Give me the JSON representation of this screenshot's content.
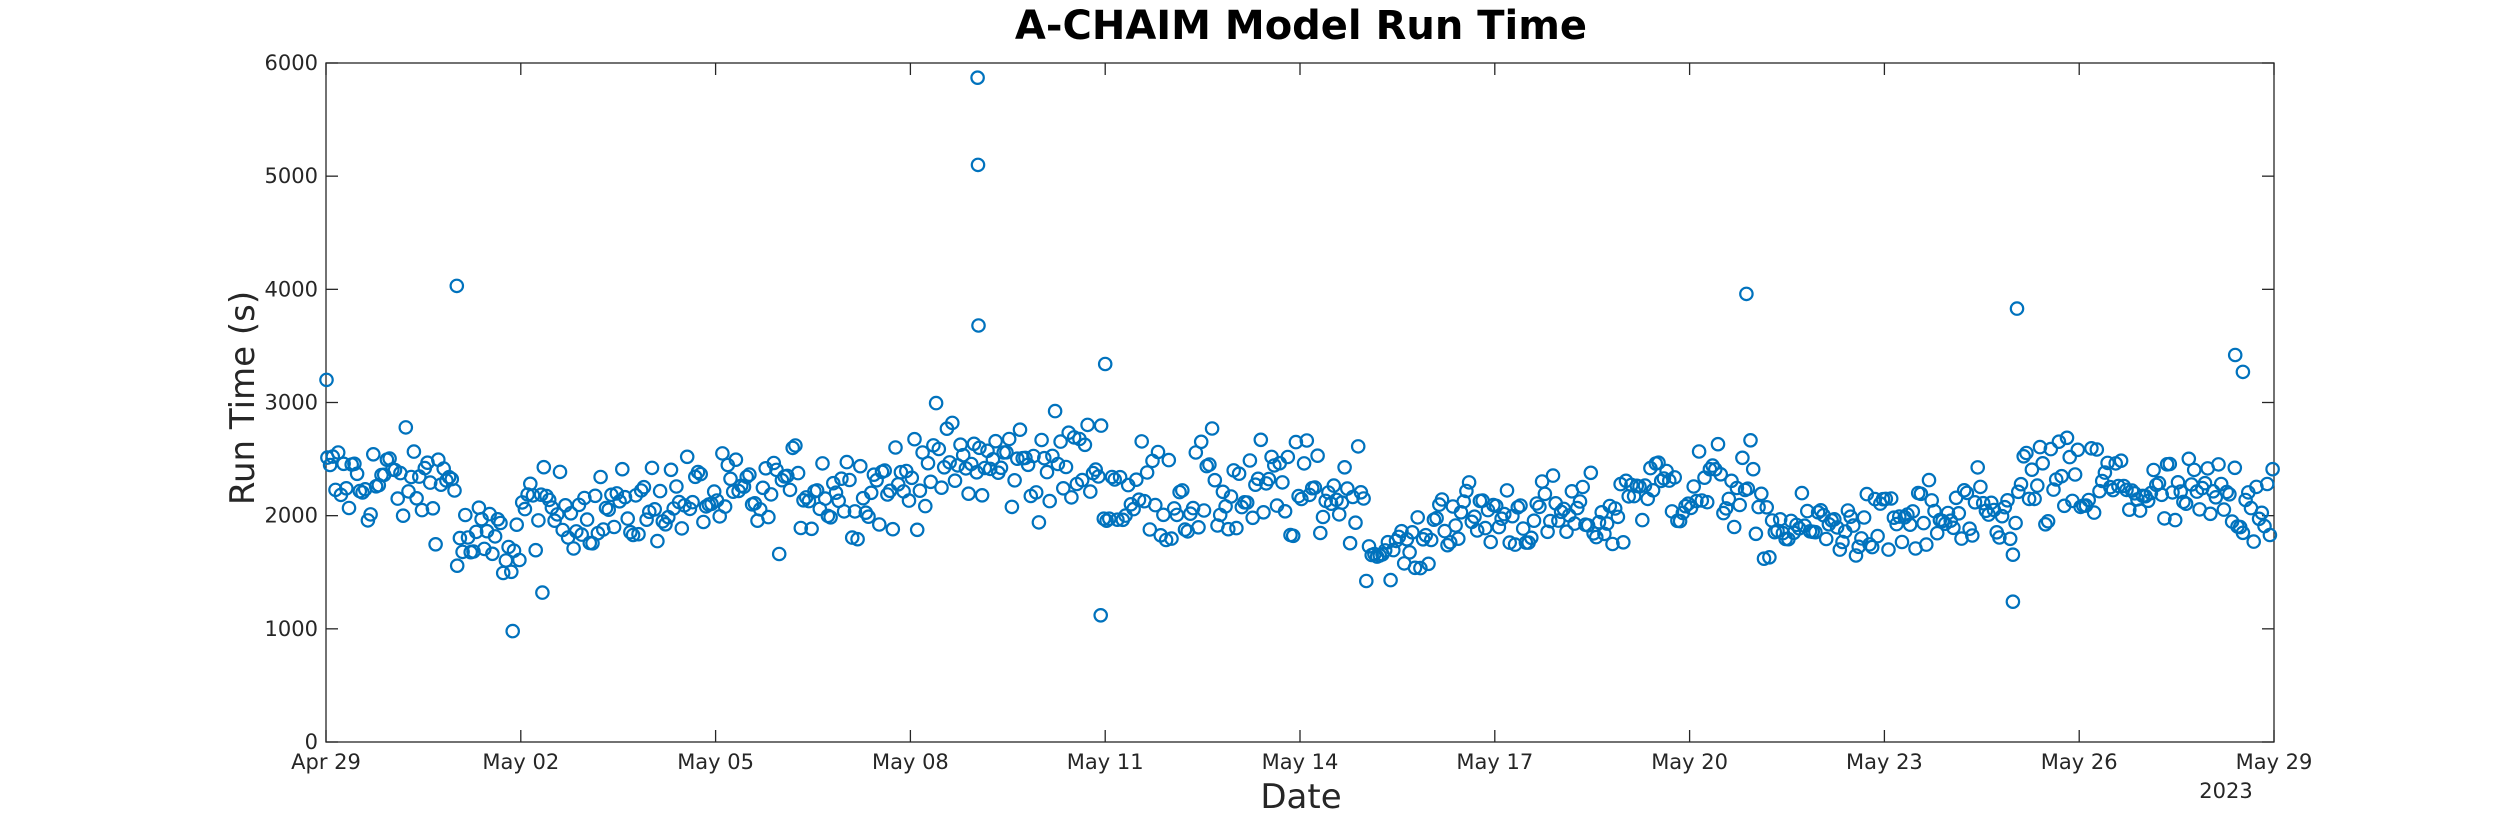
{
  "chart_data": {
    "type": "scatter",
    "title": "A-CHAIM Model Run Time",
    "xlabel": "Date",
    "ylabel": "Run Time (s)",
    "x_year_label": "2023",
    "xlim": [
      "2023-04-29",
      "2023-05-29"
    ],
    "ylim": [
      0,
      6000
    ],
    "x_ticks": [
      "Apr 29",
      "May 02",
      "May 05",
      "May 08",
      "May 11",
      "May 14",
      "May 17",
      "May 20",
      "May 23",
      "May 26",
      "May 29"
    ],
    "y_ticks": [
      0,
      1000,
      2000,
      3000,
      4000,
      5000,
      6000
    ],
    "grid": false,
    "marker": "circle-open",
    "marker_color": "#0072BD",
    "outliers": [
      {
        "x": "2023-04-29 00:10",
        "y": 3200
      },
      {
        "x": "2023-05-01 00:20",
        "y": 4030
      },
      {
        "x": "2023-05-01 21:00",
        "y": 980
      },
      {
        "x": "2023-05-02 08:00",
        "y": 1320
      },
      {
        "x": "2023-05-09 00:50",
        "y": 5870
      },
      {
        "x": "2023-05-09 01:00",
        "y": 5100
      },
      {
        "x": "2023-05-09 01:10",
        "y": 3680
      },
      {
        "x": "2023-05-10 22:20",
        "y": 1120
      },
      {
        "x": "2023-05-11 00:00",
        "y": 3340
      },
      {
        "x": "2023-05-20 21:00",
        "y": 3960
      },
      {
        "x": "2023-05-24 23:30",
        "y": 1240
      },
      {
        "x": "2023-05-25 01:00",
        "y": 3830
      },
      {
        "x": "2023-05-28 09:40",
        "y": 3420
      },
      {
        "x": "2023-05-28 12:30",
        "y": 3270
      }
    ],
    "series_segments": [
      {
        "start": "2023-04-29",
        "end": "2023-05-01",
        "mean": 2300,
        "spread": 380
      },
      {
        "start": "2023-05-01",
        "end": "2023-05-02",
        "mean": 1750,
        "spread": 350
      },
      {
        "start": "2023-05-02",
        "end": "2023-05-04",
        "mean": 2050,
        "spread": 300
      },
      {
        "start": "2023-05-04",
        "end": "2023-05-06",
        "mean": 2150,
        "spread": 350
      },
      {
        "start": "2023-05-06",
        "end": "2023-05-08",
        "mean": 2250,
        "spread": 380
      },
      {
        "start": "2023-05-08",
        "end": "2023-05-11",
        "mean": 2450,
        "spread": 400
      },
      {
        "start": "2023-05-11",
        "end": "2023-05-14",
        "mean": 2200,
        "spread": 420
      },
      {
        "start": "2023-05-14",
        "end": "2023-05-15",
        "mean": 2200,
        "spread": 400
      },
      {
        "start": "2023-05-15",
        "end": "2023-05-16",
        "mean": 1700,
        "spread": 200
      },
      {
        "start": "2023-05-16",
        "end": "2023-05-19",
        "mean": 2000,
        "spread": 300
      },
      {
        "start": "2023-05-19",
        "end": "2023-05-21",
        "mean": 2250,
        "spread": 350
      },
      {
        "start": "2023-05-21",
        "end": "2023-05-23",
        "mean": 1900,
        "spread": 250
      },
      {
        "start": "2023-05-23",
        "end": "2023-05-25",
        "mean": 1950,
        "spread": 350
      },
      {
        "start": "2023-05-25",
        "end": "2023-05-27",
        "mean": 2250,
        "spread": 400
      },
      {
        "start": "2023-05-27",
        "end": "2023-05-29",
        "mean": 2150,
        "spread": 350
      }
    ]
  }
}
